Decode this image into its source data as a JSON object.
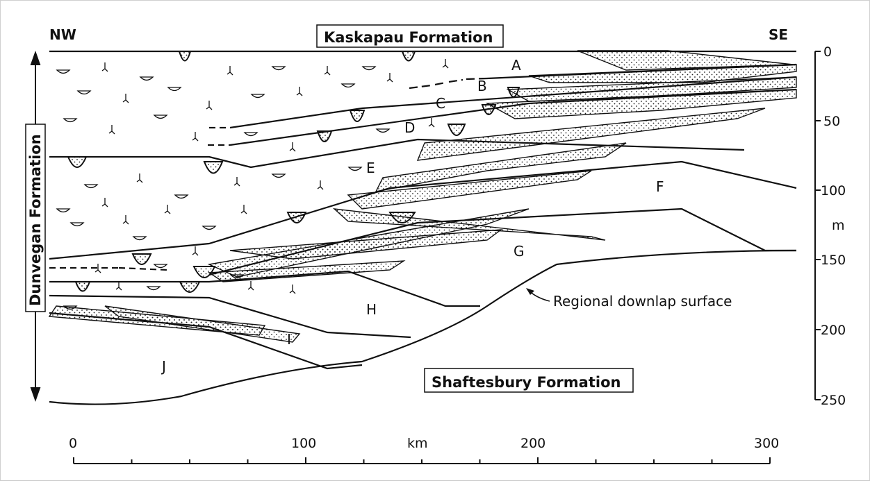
{
  "corners": {
    "left": "NW",
    "right": "SE"
  },
  "top_formation": "Kaskapau Formation",
  "bottom_formation": "Shaftesbury Formation",
  "side_formation": "Dunvegan Formation",
  "annotation": "Regional downlap surface",
  "units": [
    "A",
    "B",
    "C",
    "D",
    "E",
    "F",
    "G",
    "H",
    "I",
    "J"
  ],
  "depth_axis": {
    "unit": "m",
    "ticks": [
      "0",
      "50",
      "100",
      "150",
      "200",
      "250"
    ]
  },
  "distance_axis": {
    "unit": "km",
    "ticks": [
      "0",
      "100",
      "200",
      "300"
    ]
  }
}
